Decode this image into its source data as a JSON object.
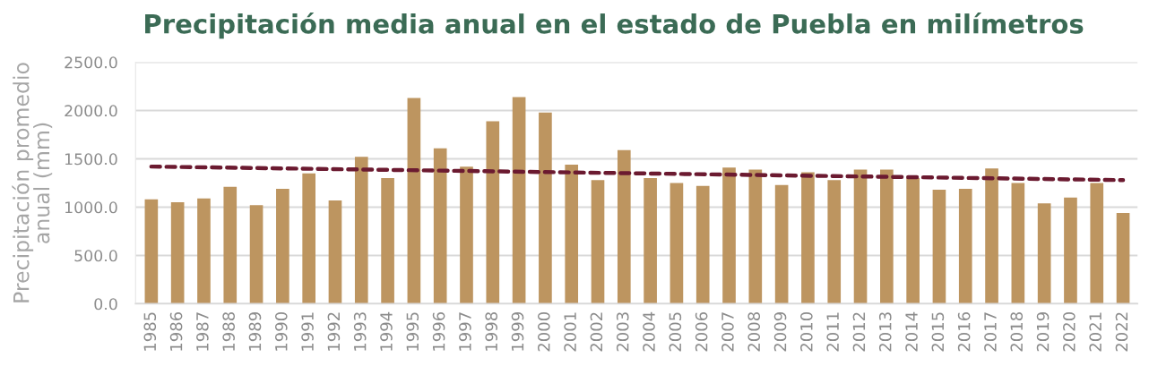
{
  "chart_data": {
    "type": "bar",
    "title": "Precipitación media anual en el estado de Puebla en milímetros",
    "ylabel": "Precipitación promedio\nanual (mm)",
    "x": [
      1985,
      1986,
      1987,
      1988,
      1989,
      1990,
      1991,
      1992,
      1993,
      1994,
      1995,
      1996,
      1997,
      1998,
      1999,
      2000,
      2001,
      2002,
      2003,
      2004,
      2005,
      2006,
      2007,
      2008,
      2009,
      2010,
      2011,
      2012,
      2013,
      2014,
      2015,
      2016,
      2017,
      2018,
      2019,
      2020,
      2021,
      2022
    ],
    "series": [
      {
        "color": "#bd9560",
        "values": [
          1080,
          1050,
          1090,
          1210,
          1020,
          1190,
          1350,
          1070,
          1520,
          1300,
          2130,
          1610,
          1420,
          1890,
          2140,
          1980,
          1440,
          1280,
          1590,
          1300,
          1250,
          1220,
          1410,
          1390,
          1230,
          1360,
          1280,
          1390,
          1390,
          1300,
          1180,
          1190,
          1400,
          1250,
          1040,
          1100,
          1250,
          940
        ]
      },
      {
        "type": "line",
        "color": "#6b1a30",
        "line_style": "dashed",
        "x": [
          1985,
          2022
        ],
        "values": [
          1420,
          1280
        ]
      }
    ],
    "xlim": [
      1984.4,
      2022.55
    ],
    "xticks": [
      1985,
      1986,
      1987,
      1988,
      1989,
      1990,
      1991,
      1992,
      1993,
      1994,
      1995,
      1996,
      1997,
      1998,
      1999,
      2000,
      2001,
      2002,
      2003,
      2004,
      2005,
      2006,
      2007,
      2008,
      2009,
      2010,
      2011,
      2012,
      2013,
      2014,
      2015,
      2016,
      2017,
      2018,
      2019,
      2020,
      2021,
      2022
    ],
    "ylim": [
      0,
      2500
    ],
    "yticks": [
      {
        "value": 0,
        "label": "0.0"
      },
      {
        "value": 500,
        "label": "500.0"
      },
      {
        "value": 1000,
        "label": "1000.0"
      },
      {
        "value": 1500,
        "label": "1500.0"
      },
      {
        "value": 2000,
        "label": "2000.0"
      },
      {
        "value": 2500,
        "label": "2500.0"
      }
    ],
    "grid": "y"
  }
}
